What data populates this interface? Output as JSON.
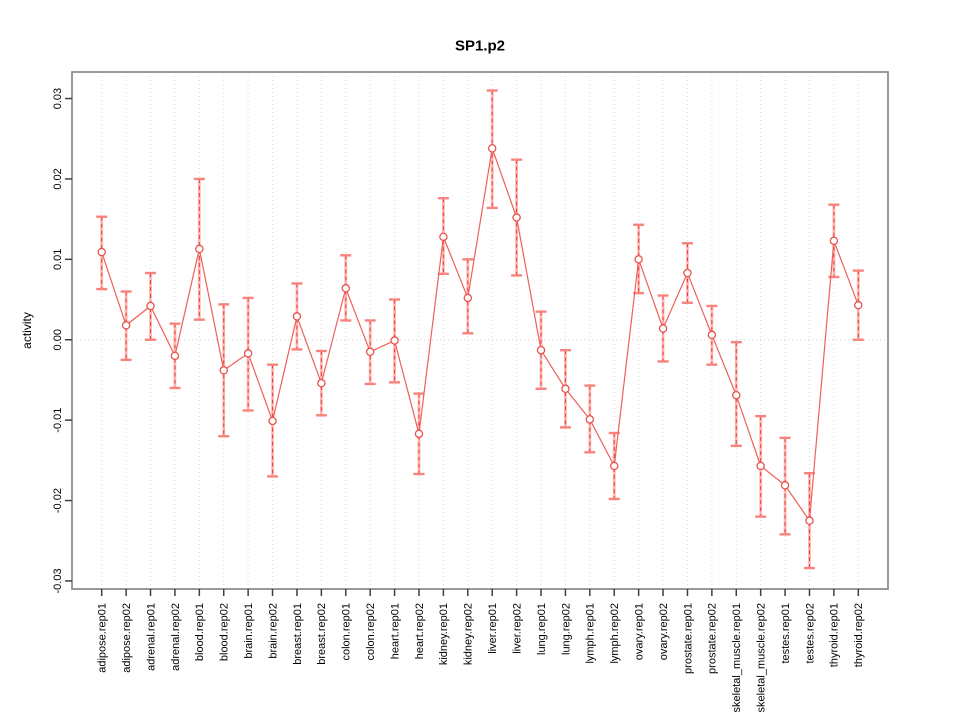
{
  "chart_data": {
    "type": "line",
    "title": "SP1.p2",
    "ylabel": "activity",
    "xlabel": "",
    "legend_position": "none",
    "grid": "vertical dotted gridline at each category; dotted horizontal line at y=0",
    "ylim": [
      -0.031,
      0.0333
    ],
    "yticks": [
      -0.03,
      -0.02,
      -0.01,
      0,
      0.01,
      0.02,
      0.03
    ],
    "ytick_labels": [
      "-0.03",
      "-0.02",
      "-0.01",
      "0.00",
      "0.01",
      "0.02",
      "0.03"
    ],
    "categories": [
      "adipose.rep01",
      "adipose.rep02",
      "adrenal.rep01",
      "adrenal.rep02",
      "blood.rep01",
      "blood.rep02",
      "brain.rep01",
      "brain.rep02",
      "breast.rep01",
      "breast.rep02",
      "colon.rep01",
      "colon.rep02",
      "heart.rep01",
      "heart.rep02",
      "kidney.rep01",
      "kidney.rep02",
      "liver.rep01",
      "liver.rep02",
      "lung.rep01",
      "lung.rep02",
      "lymph.rep01",
      "lymph.rep02",
      "ovary.rep01",
      "ovary.rep02",
      "prostate.rep01",
      "prostate.rep02",
      "skeletal_muscle.rep01",
      "skeletal_muscle.rep02",
      "testes.rep01",
      "testes.rep02",
      "thyroid.rep01",
      "thyroid.rep02"
    ],
    "series": [
      {
        "name": "SP1.p2 activity",
        "marker": "open-circle",
        "values": [
          0.0109,
          0.0018,
          0.0042,
          -0.002,
          0.0113,
          -0.0038,
          -0.0017,
          -0.0101,
          0.0029,
          -0.0054,
          0.0064,
          -0.0015,
          -0.0001,
          -0.0117,
          0.0128,
          0.0052,
          0.0238,
          0.0152,
          -0.0013,
          -0.0061,
          -0.0099,
          -0.0157,
          0.01,
          0.0014,
          0.0083,
          0.0006,
          -0.0069,
          -0.0157,
          -0.0181,
          -0.0225,
          0.0123,
          0.0043
        ],
        "lower": [
          0.0063,
          -0.0025,
          0.0,
          -0.006,
          0.0025,
          -0.012,
          -0.0088,
          -0.017,
          -0.0012,
          -0.0094,
          0.0024,
          -0.0055,
          -0.0053,
          -0.0167,
          0.0082,
          0.0008,
          0.0164,
          0.008,
          -0.0061,
          -0.0109,
          -0.014,
          -0.0198,
          0.0058,
          -0.0027,
          0.0046,
          -0.0031,
          -0.0132,
          -0.022,
          -0.0242,
          -0.0284,
          0.0078,
          0.0
        ],
        "upper": [
          0.0153,
          0.006,
          0.0083,
          0.002,
          0.02,
          0.0044,
          0.0052,
          -0.0031,
          0.007,
          -0.0014,
          0.0105,
          0.0024,
          0.005,
          -0.0067,
          0.0176,
          0.01,
          0.031,
          0.0224,
          0.0035,
          -0.0013,
          -0.0057,
          -0.0116,
          0.0143,
          0.0055,
          0.012,
          0.0042,
          -0.0003,
          -0.0095,
          -0.0122,
          -0.0166,
          0.0168,
          0.0086
        ]
      }
    ],
    "colors": {
      "series_line": "#ef5f58",
      "marker_stroke": "#e8534c",
      "errorbar_fill": "#ffb6b3",
      "errorbar_cap": "#f8837d",
      "errorbar_dash": "#e63f39",
      "gridline": "#d8d8d8",
      "zero_line": "#d4d4d4",
      "plot_border": "#808080",
      "tick": "#404040",
      "text": "#000000"
    }
  }
}
